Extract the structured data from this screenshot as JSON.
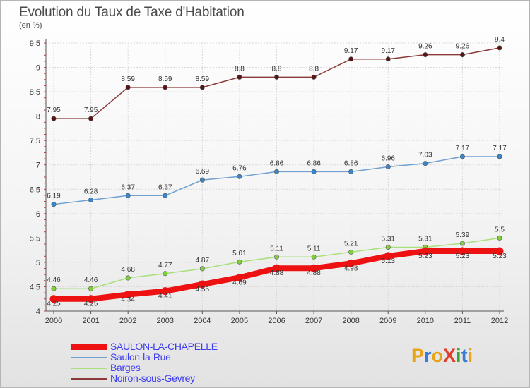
{
  "header": {
    "title": "Evolution du Taux de Taxe d'Habitation",
    "subtitle": "(en %)"
  },
  "logo": {
    "text": "ProXiti",
    "letters": [
      "P",
      "r",
      "o",
      "X",
      "i",
      "t",
      "i"
    ],
    "colors": [
      "#e8a317",
      "#3a7bd5",
      "#e8a317",
      "#e23d28",
      "#3aa63a",
      "#3a7bd5",
      "#e8a317"
    ]
  },
  "chart_data": {
    "type": "line",
    "title": "Evolution du Taux de Taxe d'Habitation",
    "ylabel": "(en %)",
    "x": [
      "2000",
      "2001",
      "2002",
      "2003",
      "2004",
      "2005",
      "2006",
      "2007",
      "2008",
      "2009",
      "2010",
      "2011",
      "2012"
    ],
    "ylim": [
      4,
      9.5
    ],
    "yticks": [
      "4",
      "4.5",
      "5",
      "5.5",
      "6",
      "6.5",
      "7",
      "7.5",
      "8",
      "8.5",
      "9",
      "9.5"
    ],
    "grid": true,
    "legend_position": "bottom-left",
    "series": [
      {
        "name": "SAULON-LA-CHAPELLE",
        "color": "#ee1111",
        "marker": "#ee1111",
        "width": 8,
        "values": [
          4.25,
          4.25,
          4.34,
          4.41,
          4.55,
          4.69,
          4.88,
          4.88,
          4.98,
          5.13,
          5.23,
          5.23,
          5.23
        ],
        "labels": [
          "4.25",
          "4.25",
          "4.34",
          "4.41",
          "4.55",
          "4.69",
          "4.88",
          "4.88",
          "4.98",
          "5.13",
          "5.23",
          "5.23",
          "5.23"
        ]
      },
      {
        "name": "Saulon-la-Rue",
        "color": "#6fa0d0",
        "marker": "#3a86c8",
        "width": 1.5,
        "values": [
          6.19,
          6.28,
          6.37,
          6.37,
          6.69,
          6.76,
          6.86,
          6.86,
          6.86,
          6.96,
          7.03,
          7.17,
          7.17
        ],
        "labels": [
          "6.19",
          "6.28",
          "6.37",
          "6.37",
          "6.69",
          "6.76",
          "6.86",
          "6.86",
          "6.86",
          "6.96",
          "7.03",
          "7.17",
          "7.17"
        ]
      },
      {
        "name": "Barges",
        "color": "#a8e07a",
        "marker": "#7fd13b",
        "width": 1.5,
        "values": [
          4.46,
          4.46,
          4.68,
          4.77,
          4.87,
          5.01,
          5.11,
          5.11,
          5.21,
          5.31,
          5.31,
          5.39,
          5.5
        ],
        "labels": [
          "4.46",
          "4.46",
          "4.68",
          "4.77",
          "4.87",
          "5.01",
          "5.11",
          "5.11",
          "5.21",
          "5.31",
          "5.31",
          "5.39",
          "5.5"
        ]
      },
      {
        "name": "Noiron-sous-Gevrey",
        "color": "#8b3a3a",
        "marker": "#5a1414",
        "width": 1.5,
        "values": [
          7.95,
          7.95,
          8.59,
          8.59,
          8.59,
          8.8,
          8.8,
          8.8,
          9.17,
          9.17,
          9.26,
          9.26,
          9.4
        ],
        "labels": [
          "7.95",
          "7.95",
          "8.59",
          "8.59",
          "8.59",
          "8.8",
          "8.8",
          "8.8",
          "9.17",
          "9.17",
          "9.26",
          "9.26",
          "9.4"
        ]
      }
    ]
  }
}
